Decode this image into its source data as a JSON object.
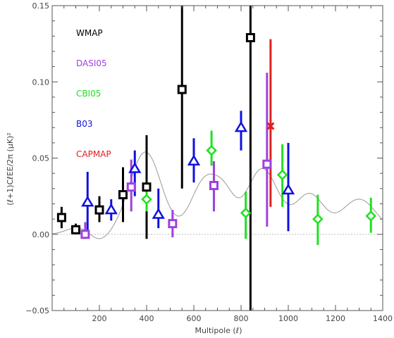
{
  "chart_data": {
    "type": "scatter",
    "xlabel": "Multipole (ℓ)",
    "ylabel": "(ℓ+1)CℓEE/2π  (μK)²",
    "xlim": [
      0,
      1400
    ],
    "ylim": [
      -0.05,
      0.15
    ],
    "xticks": [
      "200",
      "400",
      "600",
      "800",
      "1000",
      "1200",
      "1400"
    ],
    "yticks": [
      "−0.05",
      "0.00",
      "0.05",
      "0.10",
      "0.15"
    ],
    "xtick_values": [
      200,
      400,
      600,
      800,
      1000,
      1200,
      1400
    ],
    "ytick_values": [
      -0.05,
      0.0,
      0.05,
      0.1,
      0.15
    ],
    "legend_placement": "top-left",
    "grid": false,
    "series": [
      {
        "name": "WMAP",
        "color": "#000000",
        "marker": "square",
        "points": [
          {
            "x": 40,
            "y": 0.011,
            "lo": 0.004,
            "hi": 0.018
          },
          {
            "x": 100,
            "y": 0.003,
            "lo": 0.0,
            "hi": 0.007
          },
          {
            "x": 200,
            "y": 0.016,
            "lo": 0.008,
            "hi": 0.025
          },
          {
            "x": 300,
            "y": 0.026,
            "lo": 0.008,
            "hi": 0.044
          },
          {
            "x": 400,
            "y": 0.031,
            "lo": -0.003,
            "hi": 0.065
          },
          {
            "x": 550,
            "y": 0.095,
            "lo": 0.03,
            "hi": 0.155
          },
          {
            "x": 840,
            "y": 0.129,
            "lo": -0.055,
            "hi": 0.155
          }
        ]
      },
      {
        "name": "DASI05",
        "color": "#a040e0",
        "marker": "square",
        "points": [
          {
            "x": 140,
            "y": 0.0,
            "lo": -0.003,
            "hi": 0.008
          },
          {
            "x": 335,
            "y": 0.031,
            "lo": 0.015,
            "hi": 0.049
          },
          {
            "x": 510,
            "y": 0.007,
            "lo": -0.002,
            "hi": 0.016
          },
          {
            "x": 685,
            "y": 0.032,
            "lo": 0.015,
            "hi": 0.048
          },
          {
            "x": 910,
            "y": 0.046,
            "lo": 0.005,
            "hi": 0.106
          }
        ]
      },
      {
        "name": "CBI05",
        "color": "#20e020",
        "marker": "diamond",
        "points": [
          {
            "x": 400,
            "y": 0.023,
            "lo": 0.015,
            "hi": 0.033
          },
          {
            "x": 675,
            "y": 0.055,
            "lo": 0.045,
            "hi": 0.068
          },
          {
            "x": 820,
            "y": 0.014,
            "lo": -0.003,
            "hi": 0.028
          },
          {
            "x": 975,
            "y": 0.039,
            "lo": 0.018,
            "hi": 0.059
          },
          {
            "x": 1125,
            "y": 0.01,
            "lo": -0.007,
            "hi": 0.026
          },
          {
            "x": 1350,
            "y": 0.012,
            "lo": 0.001,
            "hi": 0.024
          }
        ]
      },
      {
        "name": "B03",
        "color": "#1010e0",
        "marker": "triangle",
        "points": [
          {
            "x": 150,
            "y": 0.021,
            "lo": 0.002,
            "hi": 0.041
          },
          {
            "x": 250,
            "y": 0.016,
            "lo": 0.009,
            "hi": 0.023
          },
          {
            "x": 350,
            "y": 0.043,
            "lo": 0.025,
            "hi": 0.055
          },
          {
            "x": 450,
            "y": 0.013,
            "lo": 0.004,
            "hi": 0.03
          },
          {
            "x": 600,
            "y": 0.048,
            "lo": 0.034,
            "hi": 0.063
          },
          {
            "x": 800,
            "y": 0.07,
            "lo": 0.055,
            "hi": 0.081
          },
          {
            "x": 1000,
            "y": 0.029,
            "lo": 0.002,
            "hi": 0.06
          }
        ]
      },
      {
        "name": "CAPMAP",
        "color": "#e02020",
        "marker": "x",
        "points": [
          {
            "x": 925,
            "y": 0.071,
            "lo": 0.018,
            "hi": 0.128
          }
        ]
      }
    ]
  }
}
